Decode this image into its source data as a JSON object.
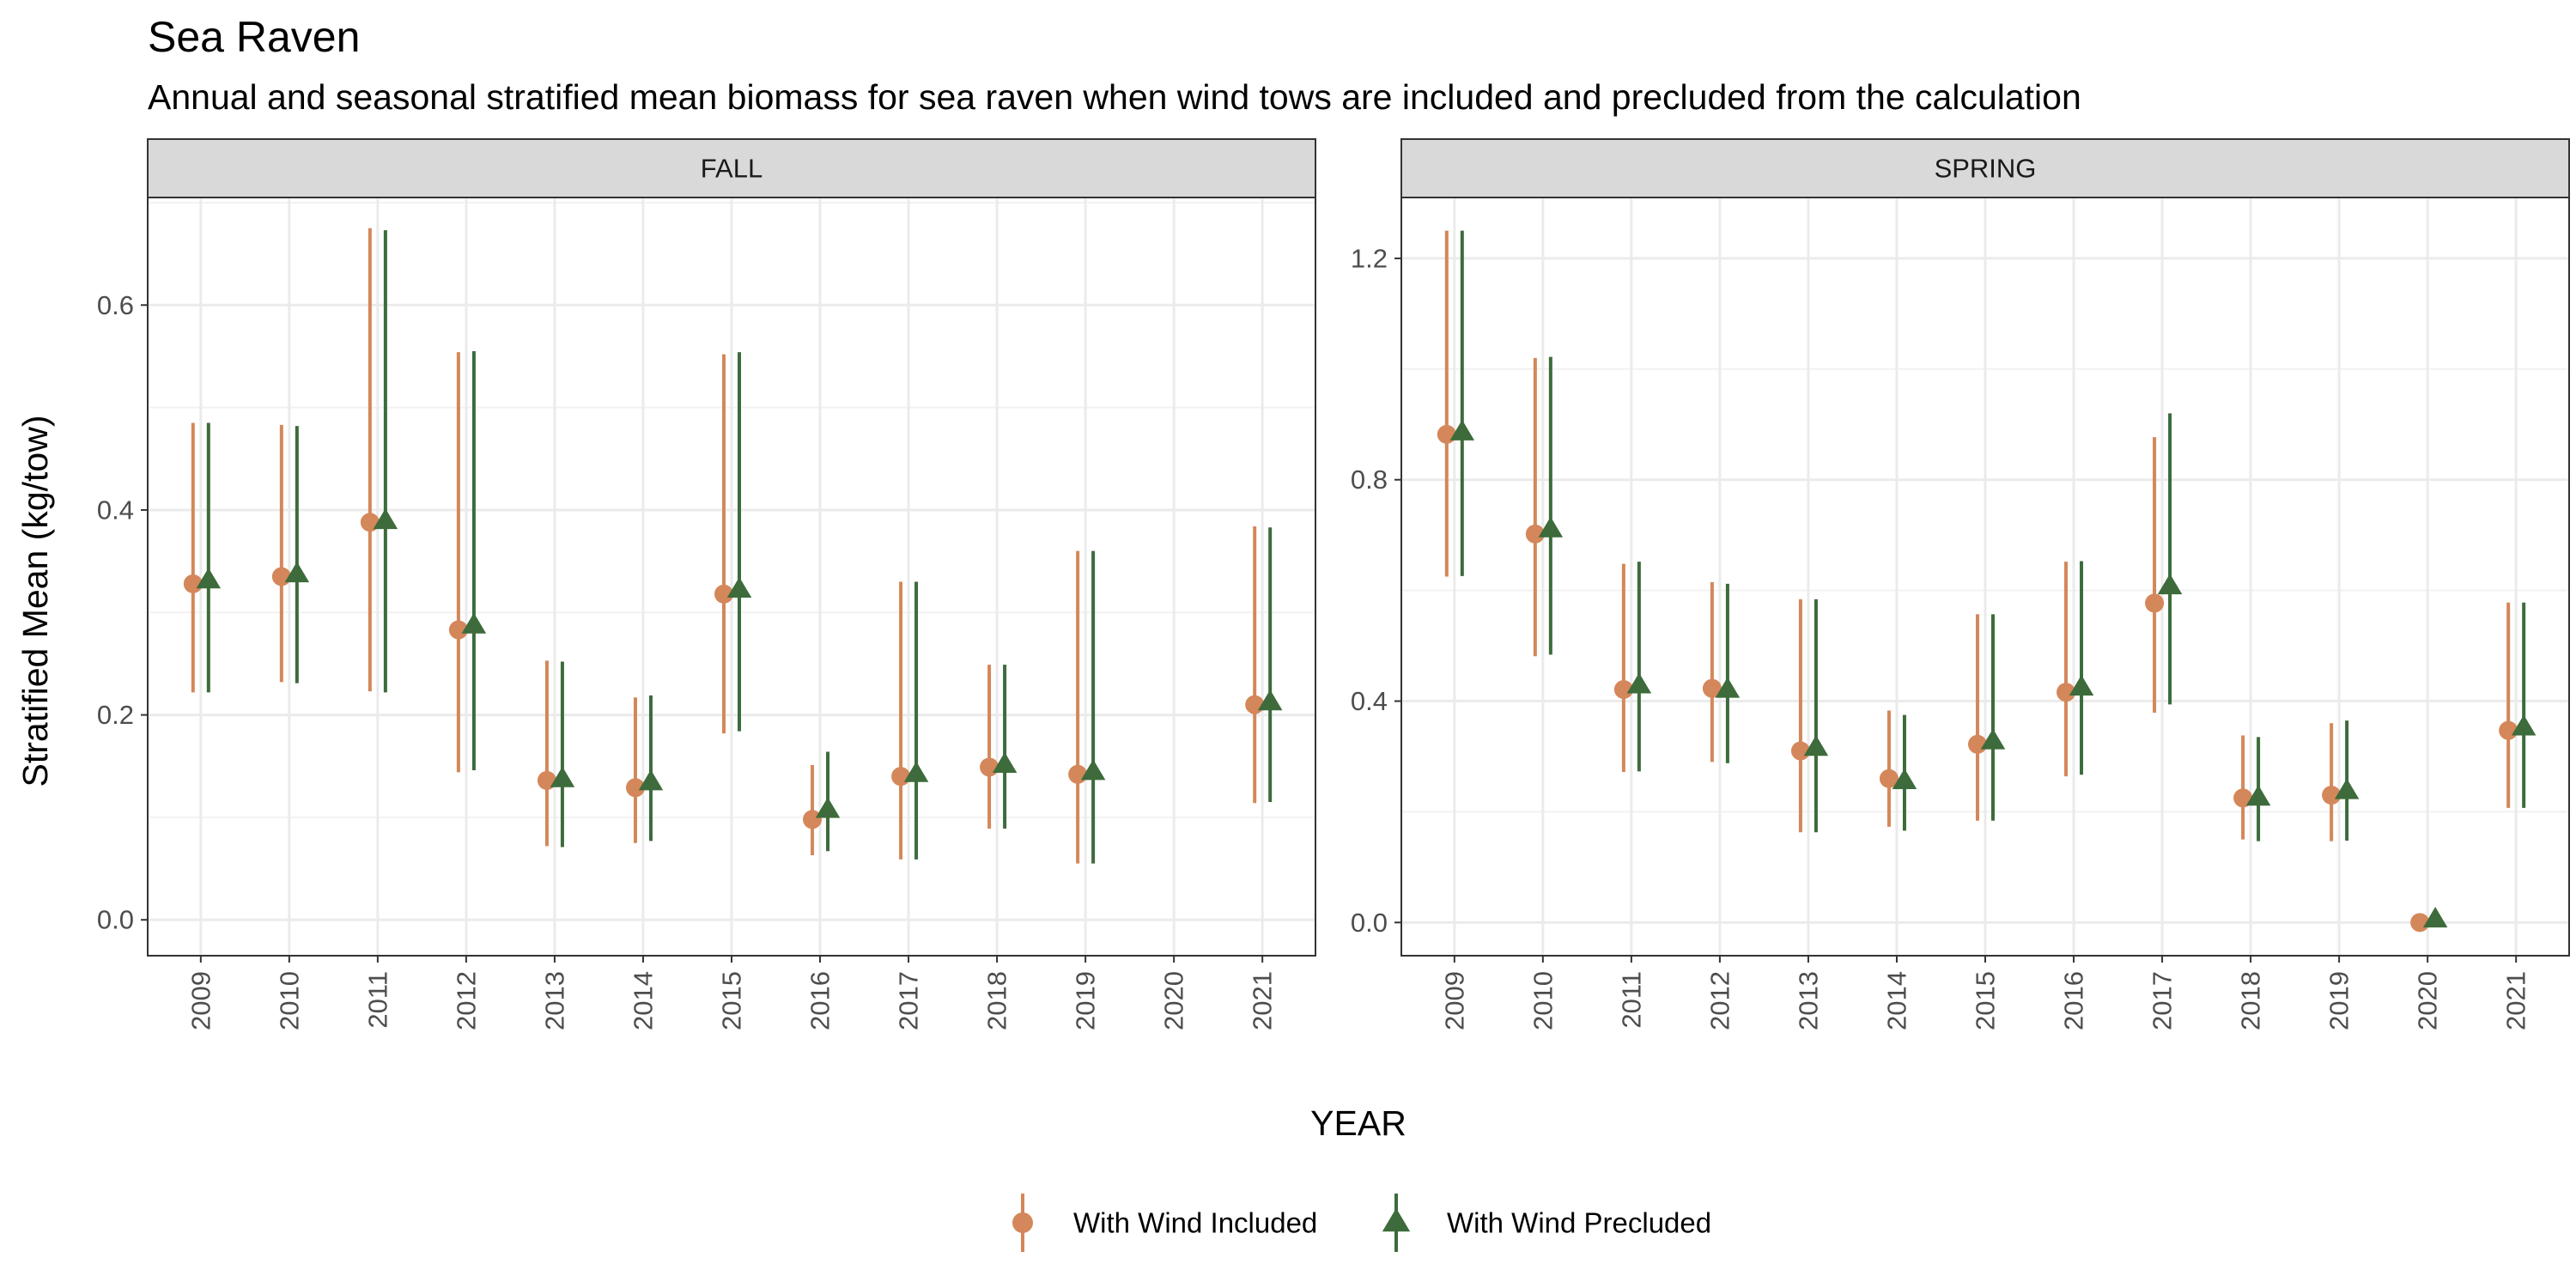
{
  "chart_data": {
    "type": "errorbar",
    "title": "Sea Raven",
    "subtitle": "Annual and seasonal stratified mean biomass for sea raven when wind tows are included and precluded from the calculation",
    "xlabel": "YEAR",
    "ylabel": "Stratified Mean (kg/tow)",
    "legend_position": "bottom",
    "grid": true,
    "categories": [
      "2009",
      "2010",
      "2011",
      "2012",
      "2013",
      "2014",
      "2015",
      "2016",
      "2017",
      "2018",
      "2019",
      "2020",
      "2021"
    ],
    "series": [
      {
        "name": "With Wind Included",
        "color": "#D4875A",
        "marker": "circle"
      },
      {
        "name": "With Wind Precluded",
        "color": "#3D6B3B",
        "marker": "triangle"
      }
    ],
    "panels": [
      {
        "label": "FALL",
        "ylim": [
          -0.035,
          0.705
        ],
        "yticks": [
          0.0,
          0.2,
          0.4,
          0.6
        ],
        "ytick_labels": [
          "0.0",
          "0.2",
          "0.4",
          "0.6"
        ],
        "data": {
          "With Wind Included": [
            {
              "x": "2009",
              "y": 0.328,
              "lo": 0.222,
              "hi": 0.485
            },
            {
              "x": "2010",
              "y": 0.335,
              "lo": 0.232,
              "hi": 0.483
            },
            {
              "x": "2011",
              "y": 0.388,
              "lo": 0.223,
              "hi": 0.675
            },
            {
              "x": "2012",
              "y": 0.283,
              "lo": 0.144,
              "hi": 0.554
            },
            {
              "x": "2013",
              "y": 0.136,
              "lo": 0.072,
              "hi": 0.253
            },
            {
              "x": "2014",
              "y": 0.129,
              "lo": 0.075,
              "hi": 0.217
            },
            {
              "x": "2015",
              "y": 0.318,
              "lo": 0.182,
              "hi": 0.552
            },
            {
              "x": "2016",
              "y": 0.098,
              "lo": 0.063,
              "hi": 0.151
            },
            {
              "x": "2017",
              "y": 0.14,
              "lo": 0.059,
              "hi": 0.33
            },
            {
              "x": "2018",
              "y": 0.149,
              "lo": 0.089,
              "hi": 0.249
            },
            {
              "x": "2019",
              "y": 0.142,
              "lo": 0.055,
              "hi": 0.36
            },
            {
              "x": "2021",
              "y": 0.21,
              "lo": 0.114,
              "hi": 0.384
            }
          ],
          "With Wind Precluded": [
            {
              "x": "2009",
              "y": 0.331,
              "lo": 0.222,
              "hi": 0.485
            },
            {
              "x": "2010",
              "y": 0.337,
              "lo": 0.231,
              "hi": 0.482
            },
            {
              "x": "2011",
              "y": 0.389,
              "lo": 0.222,
              "hi": 0.673
            },
            {
              "x": "2012",
              "y": 0.287,
              "lo": 0.146,
              "hi": 0.555
            },
            {
              "x": "2013",
              "y": 0.137,
              "lo": 0.071,
              "hi": 0.252
            },
            {
              "x": "2014",
              "y": 0.134,
              "lo": 0.077,
              "hi": 0.219
            },
            {
              "x": "2015",
              "y": 0.322,
              "lo": 0.184,
              "hi": 0.554
            },
            {
              "x": "2016",
              "y": 0.107,
              "lo": 0.067,
              "hi": 0.164
            },
            {
              "x": "2017",
              "y": 0.142,
              "lo": 0.059,
              "hi": 0.33
            },
            {
              "x": "2018",
              "y": 0.151,
              "lo": 0.089,
              "hi": 0.249
            },
            {
              "x": "2019",
              "y": 0.144,
              "lo": 0.055,
              "hi": 0.36
            },
            {
              "x": "2021",
              "y": 0.212,
              "lo": 0.115,
              "hi": 0.383
            }
          ]
        }
      },
      {
        "label": "SPRING",
        "ylim": [
          -0.06,
          1.31
        ],
        "yticks": [
          0.0,
          0.4,
          0.8,
          1.2
        ],
        "ytick_labels": [
          "0.0",
          "0.4",
          "0.8",
          "1.2"
        ],
        "data": {
          "With Wind Included": [
            {
              "x": "2009",
              "y": 0.882,
              "lo": 0.625,
              "hi": 1.25
            },
            {
              "x": "2010",
              "y": 0.702,
              "lo": 0.481,
              "hi": 1.02
            },
            {
              "x": "2011",
              "y": 0.421,
              "lo": 0.272,
              "hi": 0.648
            },
            {
              "x": "2012",
              "y": 0.423,
              "lo": 0.29,
              "hi": 0.615
            },
            {
              "x": "2013",
              "y": 0.31,
              "lo": 0.163,
              "hi": 0.584
            },
            {
              "x": "2014",
              "y": 0.26,
              "lo": 0.173,
              "hi": 0.383
            },
            {
              "x": "2015",
              "y": 0.322,
              "lo": 0.184,
              "hi": 0.557
            },
            {
              "x": "2016",
              "y": 0.416,
              "lo": 0.264,
              "hi": 0.652
            },
            {
              "x": "2017",
              "y": 0.577,
              "lo": 0.379,
              "hi": 0.877
            },
            {
              "x": "2018",
              "y": 0.225,
              "lo": 0.15,
              "hi": 0.338
            },
            {
              "x": "2019",
              "y": 0.23,
              "lo": 0.147,
              "hi": 0.36
            },
            {
              "x": "2020",
              "y": 0.0,
              "lo": 0.0,
              "hi": 0.0
            },
            {
              "x": "2021",
              "y": 0.347,
              "lo": 0.207,
              "hi": 0.578
            }
          ],
          "With Wind Precluded": [
            {
              "x": "2009",
              "y": 0.885,
              "lo": 0.626,
              "hi": 1.25
            },
            {
              "x": "2010",
              "y": 0.71,
              "lo": 0.484,
              "hi": 1.022
            },
            {
              "x": "2011",
              "y": 0.428,
              "lo": 0.273,
              "hi": 0.652
            },
            {
              "x": "2012",
              "y": 0.42,
              "lo": 0.288,
              "hi": 0.612
            },
            {
              "x": "2013",
              "y": 0.315,
              "lo": 0.163,
              "hi": 0.584
            },
            {
              "x": "2014",
              "y": 0.255,
              "lo": 0.166,
              "hi": 0.375
            },
            {
              "x": "2015",
              "y": 0.327,
              "lo": 0.184,
              "hi": 0.557
            },
            {
              "x": "2016",
              "y": 0.424,
              "lo": 0.267,
              "hi": 0.653
            },
            {
              "x": "2017",
              "y": 0.607,
              "lo": 0.394,
              "hi": 0.92
            },
            {
              "x": "2018",
              "y": 0.225,
              "lo": 0.147,
              "hi": 0.335
            },
            {
              "x": "2019",
              "y": 0.237,
              "lo": 0.148,
              "hi": 0.365
            },
            {
              "x": "2020",
              "y": 0.005,
              "lo": 0.005,
              "hi": 0.005
            },
            {
              "x": "2021",
              "y": 0.352,
              "lo": 0.207,
              "hi": 0.578
            }
          ]
        }
      }
    ]
  }
}
